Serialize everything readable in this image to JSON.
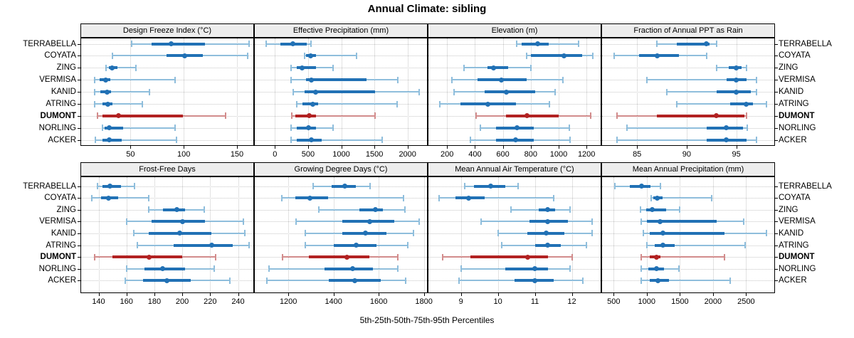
{
  "title": "Annual Climate: sibling",
  "caption": "5th-25th-50th-75th-95th Percentiles",
  "sites": [
    "TERRABELLA",
    "COYATA",
    "ZING",
    "VERMISA",
    "KANID",
    "ATRING",
    "DUMONT",
    "NORLING",
    "ACKER"
  ],
  "highlight_site": "DUMONT",
  "colors": {
    "series": "#2171B5",
    "series_light": "#8FBEDC",
    "highlight": "#B22222",
    "highlight_light": "#D28C8C",
    "strip_bg": "#EDEDED",
    "grid": "#C6C6C6",
    "border": "#000000"
  },
  "chart_data": {
    "type": "dotplot-intervals",
    "title": "Annual Climate: sibling",
    "xlabel": "5th-25th-50th-75th-95th Percentiles",
    "legend_position": "none",
    "grid": "dotted",
    "percentiles": [
      5,
      25,
      50,
      75,
      95
    ],
    "rows_top_to_bottom": [
      "TERRABELLA",
      "COYATA",
      "ZING",
      "VERMISA",
      "KANID",
      "ATRING",
      "DUMONT",
      "NORLING",
      "ACKER"
    ],
    "panels": [
      {
        "title": "Design Freeze Index (°C)",
        "grid_row": 0,
        "grid_col": 0,
        "xlim": [
          3,
          166
        ],
        "ticks": [
          50,
          100,
          150
        ],
        "values": [
          [
            51,
            70,
            88,
            120,
            161
          ],
          [
            33,
            84,
            101,
            118,
            160
          ],
          [
            27,
            30,
            33,
            38,
            55
          ],
          [
            16,
            21,
            27,
            31,
            92
          ],
          [
            16,
            22,
            28,
            32,
            68
          ],
          [
            16,
            24,
            29,
            33,
            61
          ],
          [
            19,
            24,
            39,
            99,
            139
          ],
          [
            24,
            26,
            30,
            43,
            92
          ],
          [
            17,
            24,
            30,
            42,
            93
          ]
        ]
      },
      {
        "title": "Effective Precipitation (mm)",
        "grid_row": 0,
        "grid_col": 1,
        "xlim": [
          -314,
          2304
        ],
        "ticks": [
          0,
          500,
          1000,
          1500,
          2000
        ],
        "values": [
          [
            -130,
            80,
            270,
            480,
            545
          ],
          [
            445,
            470,
            535,
            615,
            1230
          ],
          [
            245,
            330,
            405,
            615,
            880
          ],
          [
            245,
            470,
            545,
            1380,
            1855
          ],
          [
            275,
            445,
            610,
            1510,
            2180
          ],
          [
            330,
            420,
            570,
            650,
            1845
          ],
          [
            250,
            310,
            520,
            615,
            1510
          ],
          [
            240,
            330,
            505,
            615,
            880
          ],
          [
            240,
            330,
            545,
            705,
            1615
          ]
        ]
      },
      {
        "title": "Elevation (m)",
        "grid_row": 0,
        "grid_col": 2,
        "xlim": [
          61,
          1306
        ],
        "ticks": [
          200,
          400,
          600,
          800,
          1000,
          1200
        ],
        "values": [
          [
            700,
            735,
            850,
            930,
            1140
          ],
          [
            770,
            800,
            1040,
            1170,
            1245
          ],
          [
            320,
            490,
            535,
            640,
            800
          ],
          [
            235,
            420,
            590,
            770,
            1030
          ],
          [
            250,
            470,
            625,
            830,
            975
          ],
          [
            150,
            295,
            490,
            695,
            935
          ],
          [
            410,
            620,
            775,
            1000,
            1230
          ],
          [
            440,
            550,
            700,
            820,
            1075
          ],
          [
            365,
            550,
            690,
            820,
            1080
          ]
        ]
      },
      {
        "title": "Fraction of Annual PPT as Rain",
        "grid_row": 0,
        "grid_col": 3,
        "xlim": [
          81.4,
          98.9
        ],
        "ticks": [
          85,
          90,
          95
        ],
        "values": [
          [
            87,
            89,
            92,
            92.3,
            93
          ],
          [
            82.7,
            85.2,
            87,
            89.2,
            92
          ],
          [
            93,
            94.2,
            95,
            95.5,
            96
          ],
          [
            86,
            94,
            95,
            96,
            97
          ],
          [
            88,
            93,
            95,
            96.5,
            97
          ],
          [
            89,
            94.4,
            96,
            96.7,
            98
          ],
          [
            83,
            87,
            93,
            95.8,
            96
          ],
          [
            84,
            92,
            94,
            95.7,
            96.1
          ],
          [
            83,
            92,
            94,
            96,
            97
          ]
        ]
      },
      {
        "title": "Frost-Free Days",
        "grid_row": 1,
        "grid_col": 0,
        "xlim": [
          127,
          251.5
        ],
        "ticks": [
          140,
          160,
          180,
          200,
          220,
          240
        ],
        "values": [
          [
            139,
            143,
            148,
            156,
            166
          ],
          [
            135,
            142,
            147,
            154,
            176
          ],
          [
            176,
            186,
            196,
            202,
            216
          ],
          [
            160,
            178,
            200,
            216,
            244
          ],
          [
            165,
            176,
            198,
            221,
            245
          ],
          [
            168,
            194,
            221,
            236,
            248
          ],
          [
            137,
            150,
            176,
            200,
            224
          ],
          [
            160,
            173,
            186,
            202,
            223
          ],
          [
            159,
            172,
            189,
            206,
            234
          ]
        ]
      },
      {
        "title": "Growing Degree Days (°C)",
        "grid_row": 1,
        "grid_col": 1,
        "xlim": [
          1048,
          1817
        ],
        "ticks": [
          1200,
          1400,
          1600,
          1800
        ],
        "values": [
          [
            1310,
            1390,
            1450,
            1500,
            1560
          ],
          [
            1170,
            1230,
            1295,
            1375,
            1710
          ],
          [
            1335,
            1515,
            1585,
            1620,
            1715
          ],
          [
            1235,
            1440,
            1560,
            1670,
            1780
          ],
          [
            1275,
            1440,
            1540,
            1635,
            1755
          ],
          [
            1275,
            1400,
            1500,
            1590,
            1730
          ],
          [
            1175,
            1290,
            1460,
            1560,
            1685
          ],
          [
            1115,
            1360,
            1485,
            1575,
            1685
          ],
          [
            1105,
            1380,
            1495,
            1610,
            1720
          ]
        ]
      },
      {
        "title": "Mean Annual Air Temperature (°C)",
        "grid_row": 1,
        "grid_col": 2,
        "xlim": [
          8.1,
          12.8
        ],
        "ticks": [
          9,
          10,
          11,
          12
        ],
        "values": [
          [
            9.1,
            9.35,
            9.8,
            10.2,
            10.55
          ],
          [
            8.4,
            8.85,
            9.2,
            9.65,
            11.5
          ],
          [
            10.35,
            11.1,
            11.35,
            11.55,
            11.95
          ],
          [
            9.55,
            10.85,
            11.35,
            11.9,
            12.55
          ],
          [
            10,
            10.8,
            11.3,
            11.8,
            12.55
          ],
          [
            10.1,
            11,
            11.35,
            11.7,
            12.4
          ],
          [
            8.5,
            9.25,
            10.8,
            11.35,
            12
          ],
          [
            9,
            10.2,
            11,
            11.35,
            11.95
          ],
          [
            8.95,
            10.45,
            11,
            11.5,
            12.3
          ]
        ]
      },
      {
        "title": "Mean Annual Precipitation (mm)",
        "grid_row": 1,
        "grid_col": 3,
        "xlim": [
          314,
          2936
        ],
        "ticks": [
          500,
          1000,
          1500,
          2000,
          2500
        ],
        "values": [
          [
            515,
            740,
            925,
            1060,
            1200
          ],
          [
            1070,
            1100,
            1155,
            1240,
            1980
          ],
          [
            900,
            990,
            1080,
            1290,
            1500
          ],
          [
            920,
            1005,
            1200,
            2060,
            2465
          ],
          [
            945,
            1040,
            1240,
            2170,
            2805
          ],
          [
            1000,
            1115,
            1245,
            1420,
            2480
          ],
          [
            910,
            1040,
            1150,
            1205,
            2170
          ],
          [
            910,
            1025,
            1150,
            1255,
            1480
          ],
          [
            920,
            1040,
            1170,
            1330,
            2260
          ]
        ]
      }
    ]
  }
}
